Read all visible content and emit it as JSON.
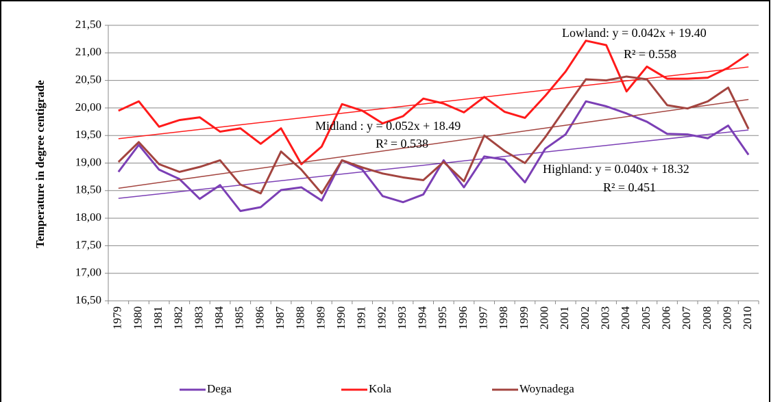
{
  "chart_data": {
    "type": "line",
    "y_label": "Temperature in degree centigrade",
    "categories": [
      "1979",
      "1980",
      "1981",
      "1982",
      "1983",
      "1984",
      "1985",
      "1986",
      "1987",
      "1988",
      "1989",
      "1990",
      "1991",
      "1992",
      "1993",
      "1994",
      "1995",
      "1996",
      "1997",
      "1998",
      "1999",
      "2000",
      "2001",
      "2002",
      "2003",
      "2004",
      "2005",
      "2006",
      "2007",
      "2008",
      "2009",
      "2010"
    ],
    "series": [
      {
        "name": "Dega",
        "color": "#7b3fb5",
        "trend": {
          "slope": 0.04,
          "intercept": 18.32
        },
        "values": [
          18.84,
          19.33,
          18.88,
          18.71,
          18.35,
          18.6,
          18.13,
          18.2,
          18.51,
          18.56,
          18.32,
          19.05,
          18.88,
          18.4,
          18.29,
          18.43,
          19.05,
          18.56,
          19.12,
          19.06,
          18.65,
          19.26,
          19.52,
          20.12,
          20.03,
          19.9,
          19.75,
          19.53,
          19.52,
          19.45,
          19.68,
          19.15
        ]
      },
      {
        "name": "Kola",
        "color": "#ff1a1a",
        "trend": {
          "slope": 0.042,
          "intercept": 19.4
        },
        "values": [
          19.95,
          20.12,
          19.66,
          19.78,
          19.83,
          19.57,
          19.63,
          19.35,
          19.63,
          18.98,
          19.3,
          20.07,
          19.95,
          19.72,
          19.85,
          20.17,
          20.08,
          19.92,
          20.2,
          19.93,
          19.82,
          20.22,
          20.66,
          21.22,
          21.14,
          20.3,
          20.75,
          20.53,
          20.53,
          20.55,
          20.73,
          20.98
        ]
      },
      {
        "name": "Woynadega",
        "color": "#a3443f",
        "trend": {
          "slope": 0.052,
          "intercept": 18.49
        },
        "values": [
          19.02,
          19.38,
          18.98,
          18.84,
          18.93,
          19.05,
          18.61,
          18.45,
          19.21,
          18.88,
          18.45,
          19.05,
          18.92,
          18.81,
          18.74,
          18.69,
          19.02,
          18.67,
          19.5,
          19.22,
          19.0,
          19.47,
          20.0,
          20.52,
          20.5,
          20.57,
          20.52,
          20.05,
          19.99,
          20.12,
          20.37,
          19.62
        ]
      }
    ],
    "annotations": [
      [
        "Lowland:  y = 0.042x + 19.40",
        "R² = 0.558"
      ],
      [
        "Midland : y = 0.052x + 18.49",
        "R² = 0.538"
      ],
      [
        "Highland: y = 0.040x + 18.32",
        "R² = 0.451"
      ]
    ],
    "ylim": [
      16.5,
      21.5
    ],
    "yticks": [
      {
        "value": 16.5,
        "label": "16,50"
      },
      {
        "value": 17,
        "label": "17,00"
      },
      {
        "value": 17.5,
        "label": "17,50"
      },
      {
        "value": 18,
        "label": "18,00"
      },
      {
        "value": 18.5,
        "label": "18,50"
      },
      {
        "value": 19,
        "label": "19,00"
      },
      {
        "value": 19.5,
        "label": "19,50"
      },
      {
        "value": 20,
        "label": "20,00"
      },
      {
        "value": 20.5,
        "label": "20,50"
      },
      {
        "value": 21,
        "label": "21,00"
      },
      {
        "value": 21.5,
        "label": "21,50"
      }
    ],
    "grid": true,
    "legend": "bottom"
  }
}
